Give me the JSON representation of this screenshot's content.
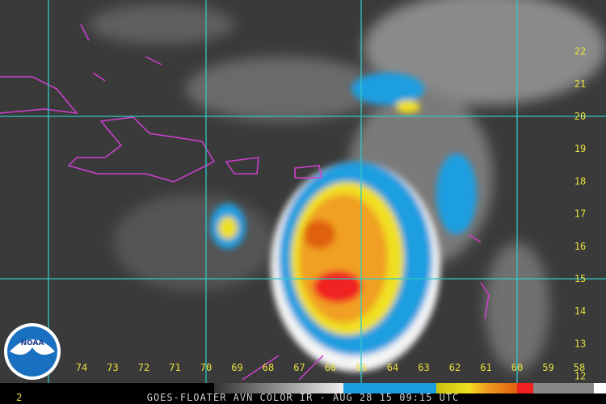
{
  "title": "GOES-FLOATER AVN COLOR IR - AUG 28 15 09:15 UTC",
  "frame_number": "2",
  "logo_text": "NOAA",
  "latitude_labels": [
    "22",
    "21",
    "20",
    "19",
    "18",
    "17",
    "16",
    "15",
    "14",
    "13",
    "12"
  ],
  "longitude_labels": [
    "74",
    "73",
    "72",
    "71",
    "70",
    "69",
    "68",
    "67",
    "66",
    "65",
    "64",
    "63",
    "62",
    "61",
    "60",
    "59",
    "58"
  ],
  "major_grid": {
    "latitudes": [
      "20",
      "15"
    ],
    "longitudes": [
      "70",
      "65",
      "60"
    ]
  },
  "colors": {
    "grid": "#30c8c8",
    "coastline": "#d040d0",
    "labels": "#e8e040",
    "ir_blue": "#1a9ee0",
    "ir_yellow": "#f0e020",
    "ir_orange": "#f08020",
    "ir_red": "#f02020"
  }
}
